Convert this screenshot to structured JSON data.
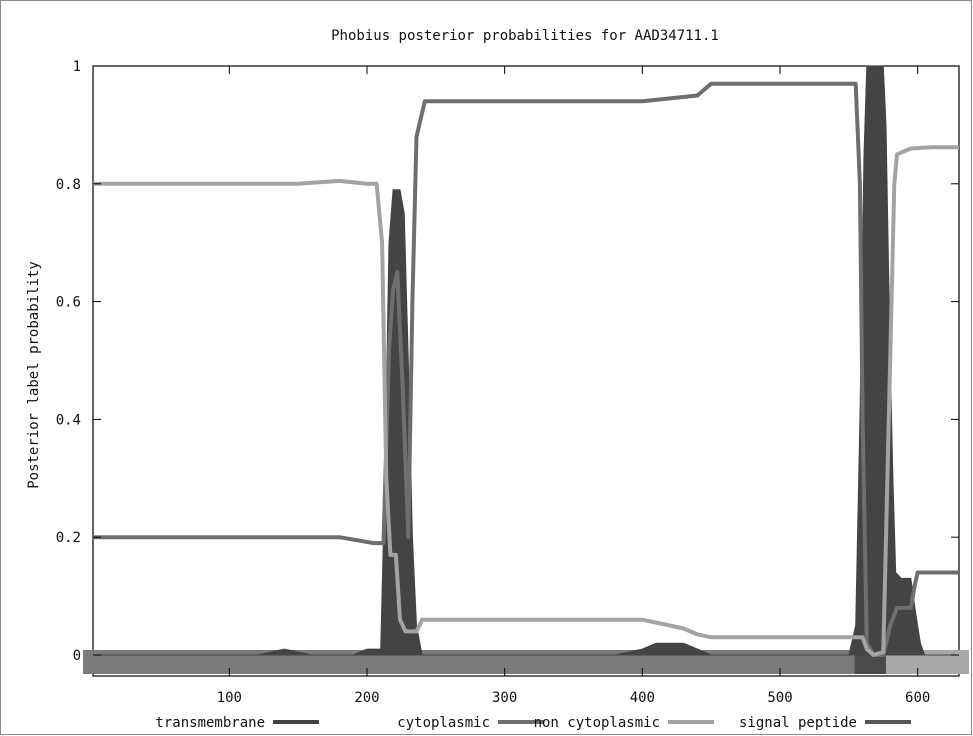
{
  "chart_data": {
    "type": "line",
    "title": "Phobius posterior probabilities for AAD34711.1",
    "xlabel": "",
    "ylabel": "Posterior label probability",
    "xlim": [
      1,
      630
    ],
    "ylim": [
      0,
      1
    ],
    "x_ticks": [
      100,
      200,
      300,
      400,
      500,
      600
    ],
    "y_ticks": [
      {
        "v": 0,
        "label": "0"
      },
      {
        "v": 0.2,
        "label": "0.2"
      },
      {
        "v": 0.4,
        "label": "0.4"
      },
      {
        "v": 0.6,
        "label": "0.6"
      },
      {
        "v": 0.8,
        "label": "0.8"
      },
      {
        "v": 1,
        "label": "1"
      }
    ],
    "grid": false,
    "legend_position": "bottom",
    "series": [
      {
        "name": "transmembrane",
        "style": "filled-area",
        "color": "#444444",
        "points": [
          [
            1,
            0.0
          ],
          [
            120,
            0.0
          ],
          [
            140,
            0.01
          ],
          [
            160,
            0.0
          ],
          [
            190,
            0.0
          ],
          [
            200,
            0.01
          ],
          [
            210,
            0.01
          ],
          [
            213,
            0.3
          ],
          [
            216,
            0.7
          ],
          [
            219,
            0.79
          ],
          [
            224,
            0.79
          ],
          [
            227,
            0.75
          ],
          [
            230,
            0.5
          ],
          [
            233,
            0.2
          ],
          [
            236,
            0.05
          ],
          [
            240,
            0.0
          ],
          [
            380,
            0.0
          ],
          [
            400,
            0.01
          ],
          [
            410,
            0.02
          ],
          [
            430,
            0.02
          ],
          [
            440,
            0.01
          ],
          [
            450,
            0.0
          ],
          [
            550,
            0.0
          ],
          [
            555,
            0.05
          ],
          [
            558,
            0.4
          ],
          [
            561,
            0.85
          ],
          [
            563,
            1.0
          ],
          [
            575,
            1.0
          ],
          [
            577,
            0.9
          ],
          [
            580,
            0.5
          ],
          [
            582,
            0.3
          ],
          [
            584,
            0.14
          ],
          [
            588,
            0.13
          ],
          [
            595,
            0.13
          ],
          [
            598,
            0.08
          ],
          [
            602,
            0.02
          ],
          [
            605,
            0.0
          ],
          [
            630,
            0.0
          ]
        ]
      },
      {
        "name": "cytoplasmic",
        "color": "#6e6e6e",
        "points": [
          [
            1,
            0.2
          ],
          [
            130,
            0.2
          ],
          [
            180,
            0.2
          ],
          [
            205,
            0.19
          ],
          [
            212,
            0.19
          ],
          [
            216,
            0.52
          ],
          [
            219,
            0.62
          ],
          [
            222,
            0.65
          ],
          [
            226,
            0.45
          ],
          [
            230,
            0.2
          ],
          [
            233,
            0.6
          ],
          [
            236,
            0.88
          ],
          [
            242,
            0.94
          ],
          [
            250,
            0.94
          ],
          [
            400,
            0.94
          ],
          [
            420,
            0.945
          ],
          [
            440,
            0.95
          ],
          [
            450,
            0.97
          ],
          [
            550,
            0.97
          ],
          [
            555,
            0.97
          ],
          [
            558,
            0.8
          ],
          [
            560,
            0.4
          ],
          [
            563,
            0.02
          ],
          [
            568,
            0.0
          ],
          [
            575,
            0.0
          ],
          [
            580,
            0.05
          ],
          [
            585,
            0.08
          ],
          [
            590,
            0.08
          ],
          [
            595,
            0.08
          ],
          [
            598,
            0.12
          ],
          [
            600,
            0.14
          ],
          [
            630,
            0.14
          ]
        ]
      },
      {
        "name": "non cytoplasmic",
        "color": "#a3a3a3",
        "points": [
          [
            1,
            0.8
          ],
          [
            130,
            0.8
          ],
          [
            150,
            0.8
          ],
          [
            180,
            0.805
          ],
          [
            200,
            0.8
          ],
          [
            207,
            0.8
          ],
          [
            211,
            0.7
          ],
          [
            214,
            0.3
          ],
          [
            217,
            0.17
          ],
          [
            221,
            0.17
          ],
          [
            224,
            0.06
          ],
          [
            228,
            0.04
          ],
          [
            236,
            0.04
          ],
          [
            240,
            0.06
          ],
          [
            250,
            0.06
          ],
          [
            400,
            0.06
          ],
          [
            420,
            0.05
          ],
          [
            430,
            0.045
          ],
          [
            440,
            0.035
          ],
          [
            450,
            0.03
          ],
          [
            550,
            0.03
          ],
          [
            556,
            0.03
          ],
          [
            560,
            0.03
          ],
          [
            563,
            0.01
          ],
          [
            568,
            0.0
          ],
          [
            575,
            0.005
          ],
          [
            578,
            0.3
          ],
          [
            583,
            0.8
          ],
          [
            585,
            0.85
          ],
          [
            595,
            0.86
          ],
          [
            610,
            0.862
          ],
          [
            630,
            0.862
          ]
        ]
      },
      {
        "name": "signal peptide",
        "color": "#555555",
        "points": []
      }
    ],
    "topology_bar": [
      {
        "start": 1,
        "end": 554,
        "label": "cytoplasmic",
        "color": "#7a7a7a"
      },
      {
        "start": 554,
        "end": 577,
        "label": "transmembrane",
        "color": "#4a4a4a"
      },
      {
        "start": 577,
        "end": 630,
        "label": "non cytoplasmic",
        "color": "#a8a8a8"
      }
    ]
  }
}
